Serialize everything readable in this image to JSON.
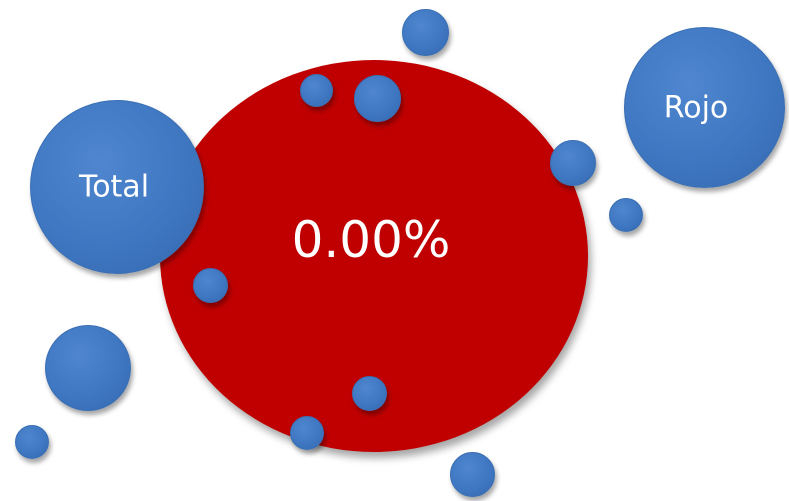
{
  "center_bubble": {
    "value": "0.00%",
    "color": "#c00000"
  },
  "label_bubbles": {
    "total": "Total",
    "rojo": "Rojo"
  },
  "colors": {
    "bubble_blue": "#3f77c2",
    "text": "#ffffff"
  }
}
